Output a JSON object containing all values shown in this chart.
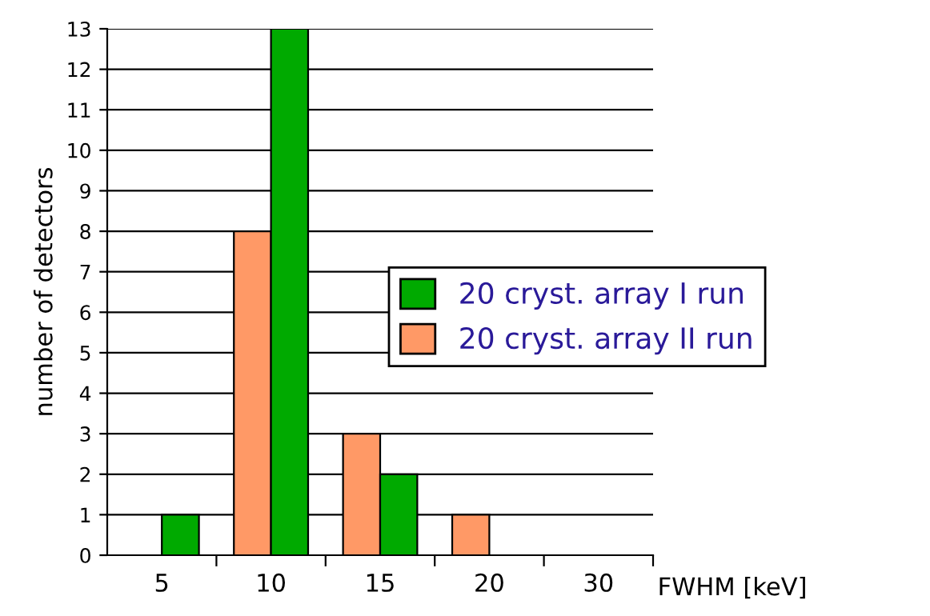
{
  "chart_data": {
    "type": "bar",
    "xlabel": "FWHM [keV]",
    "ylabel": "number of detectors",
    "categories": [
      "5",
      "10",
      "15",
      "20",
      "30"
    ],
    "series": [
      {
        "name": "20 cryst. array II run",
        "color": "#ff9966",
        "values": [
          null,
          8,
          3,
          1,
          null
        ]
      },
      {
        "name": "20 cryst. array I run",
        "color": "#00aa00",
        "values": [
          1,
          13,
          2,
          null,
          null
        ]
      }
    ],
    "ylim": [
      0,
      13
    ],
    "yticks": [
      0,
      1,
      2,
      3,
      4,
      5,
      6,
      7,
      8,
      9,
      10,
      11,
      12,
      13
    ],
    "grid": "y",
    "legend": "right"
  }
}
